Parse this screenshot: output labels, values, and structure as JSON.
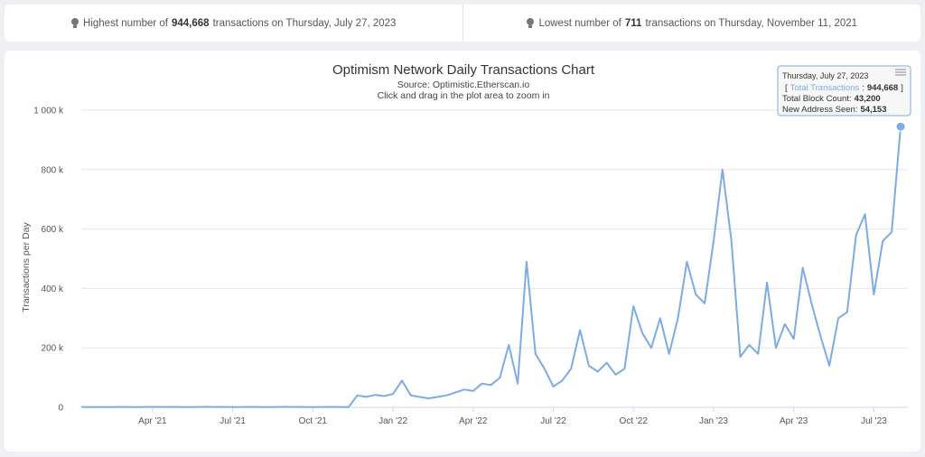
{
  "stats": [
    {
      "before": "Highest number of",
      "number": "944,668",
      "after": "transactions on Thursday, July 27, 2023"
    },
    {
      "before": "Lowest number of",
      "number": "711",
      "after": "transactions on Thursday, November 11, 2021"
    }
  ],
  "chart_data": {
    "type": "line",
    "title": "Optimism Network Daily Transactions Chart",
    "subtitle": "Source: Optimistic.Etherscan.io",
    "hint": "Click and drag in the plot area to zoom in",
    "y_label": "Transactions per Day",
    "categories": [
      null,
      null,
      null,
      null,
      null,
      null,
      null,
      null,
      "Apr '21",
      null,
      null,
      null,
      null,
      null,
      null,
      null,
      null,
      "Jul '21",
      null,
      null,
      null,
      null,
      null,
      null,
      null,
      null,
      "Oct '21",
      null,
      null,
      null,
      null,
      null,
      null,
      null,
      null,
      "Jan '22",
      null,
      null,
      null,
      null,
      null,
      null,
      null,
      null,
      "Apr '22",
      null,
      null,
      null,
      null,
      null,
      null,
      null,
      null,
      "Jul '22",
      null,
      null,
      null,
      null,
      null,
      null,
      null,
      null,
      "Oct '22",
      null,
      null,
      null,
      null,
      null,
      null,
      null,
      null,
      "Jan '23",
      null,
      null,
      null,
      null,
      null,
      null,
      null,
      null,
      "Apr '23",
      null,
      null,
      null,
      null,
      null,
      null,
      null,
      null,
      "Jul '23",
      null,
      null,
      null
    ],
    "series": [
      {
        "name": "Total Transactions",
        "color": "#7cabe5",
        "values": [
          1200,
          900,
          1100,
          1000,
          1300,
          1100,
          1000,
          1200,
          1400,
          1300,
          1200,
          1100,
          1000,
          1300,
          1500,
          1200,
          1100,
          1000,
          1200,
          1300,
          1100,
          1000,
          1200,
          1400,
          1300,
          1100,
          1000,
          1200,
          1300,
          1100,
          711,
          40000,
          35000,
          42000,
          38000,
          45000,
          90000,
          40000,
          35000,
          30000,
          35000,
          40000,
          50000,
          60000,
          55000,
          80000,
          75000,
          100000,
          210000,
          80000,
          490000,
          180000,
          130000,
          70000,
          90000,
          130000,
          260000,
          140000,
          120000,
          150000,
          110000,
          130000,
          340000,
          250000,
          200000,
          300000,
          180000,
          300000,
          490000,
          380000,
          350000,
          560000,
          800000,
          560000,
          170000,
          210000,
          180000,
          420000,
          200000,
          280000,
          230000,
          470000,
          350000,
          240000,
          140000,
          300000,
          320000,
          580000,
          650000,
          380000,
          560000,
          590000,
          944668
        ]
      }
    ],
    "ylim": [
      0,
      1000000
    ],
    "yticks": [
      0,
      {
        "value": 200000,
        "label": "200 k"
      },
      {
        "value": 400000,
        "label": "400 k"
      },
      {
        "value": 600000,
        "label": "600 k"
      },
      {
        "value": 800000,
        "label": "800 k"
      },
      {
        "value": 1000000,
        "label": "1 000 k"
      }
    ],
    "grid": true,
    "tooltip": {
      "date": "Thursday, July 27, 2023",
      "open": "[",
      "series_label": "Total Transactions",
      "sep": ":",
      "value": "944,668",
      "close": "]",
      "rows": [
        {
          "label": "Total Block Count:",
          "value": "43,200"
        },
        {
          "label": "New Address Seen:",
          "value": "54,153"
        }
      ]
    }
  }
}
